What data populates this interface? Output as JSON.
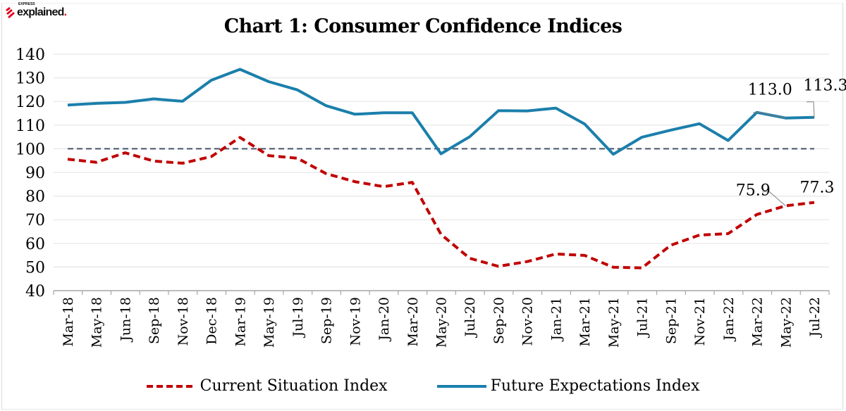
{
  "brand": {
    "small_text": "EXPRESS",
    "name": "explained",
    "dot": "."
  },
  "colors": {
    "current_series": "#c00000",
    "future_series": "#1b7fab",
    "reference_line": "#44546a",
    "gridline": "#e6e6e6",
    "axis": "#a6a6a6",
    "leader_line": "#7f7f7f",
    "brand_accent": "#e3001b"
  },
  "chart_data": {
    "type": "line",
    "title": "Chart 1: Consumer Confidence Indices",
    "xlabel": "",
    "ylabel": "",
    "ylim": [
      40,
      140
    ],
    "yticks": [
      "140",
      "130",
      "120",
      "110",
      "100",
      "90",
      "80",
      "70",
      "60",
      "50",
      "40"
    ],
    "grid": true,
    "legend_position": "bottom",
    "reference_line": {
      "value": 100,
      "style": "dashed"
    },
    "categories": [
      "Mar-18",
      "May-18",
      "Jun-18",
      "Sep-18",
      "Nov-18",
      "Dec-18",
      "Mar-19",
      "May-19",
      "Jul-19",
      "Sep-19",
      "Nov-19",
      "Jan-20",
      "Mar-20",
      "May-20",
      "Jul-20",
      "Sep-20",
      "Nov-20",
      "Jan-21",
      "Mar-21",
      "May-21",
      "Jul-21",
      "Sep-21",
      "Nov-21",
      "Jan-22",
      "Mar-22",
      "May-22",
      "Jul-22"
    ],
    "series": [
      {
        "name": "Current Situation Index",
        "style": "dashed",
        "values": [
          95.6,
          94.3,
          98.3,
          94.8,
          93.9,
          96.7,
          104.8,
          97.1,
          96.0,
          89.5,
          86.1,
          84.0,
          85.8,
          63.8,
          53.7,
          50.3,
          52.3,
          55.5,
          54.9,
          49.9,
          49.6,
          59.2,
          63.5,
          64.1,
          72.2,
          75.9,
          77.3
        ]
      },
      {
        "name": "Future Expectations Index",
        "style": "solid",
        "values": [
          118.5,
          119.2,
          119.6,
          121.1,
          120.1,
          129.0,
          133.6,
          128.4,
          124.9,
          118.2,
          114.6,
          115.2,
          115.2,
          97.9,
          105.1,
          116.1,
          116.0,
          117.2,
          110.5,
          97.7,
          104.9,
          107.9,
          110.6,
          103.5,
          115.4,
          113.0,
          113.3
        ]
      }
    ],
    "annotations": [
      {
        "series": "Future Expectations Index",
        "category": "May-22",
        "text": "113.0"
      },
      {
        "series": "Future Expectations Index",
        "category": "Jul-22",
        "text": "113.3"
      },
      {
        "series": "Current Situation Index",
        "category": "May-22",
        "text": "75.9"
      },
      {
        "series": "Current Situation Index",
        "category": "Jul-22",
        "text": "77.3"
      }
    ]
  },
  "legend": [
    {
      "label": "Current Situation Index"
    },
    {
      "label": "Future Expectations Index"
    }
  ]
}
